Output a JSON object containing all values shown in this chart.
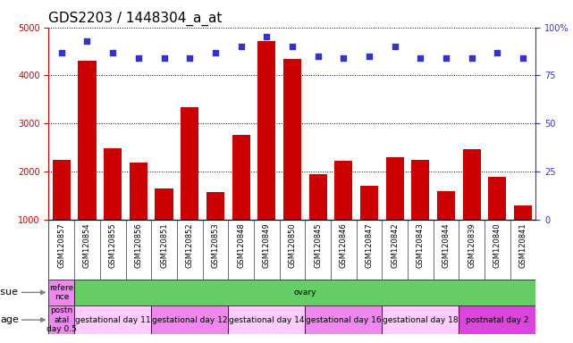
{
  "title": "GDS2203 / 1448304_a_at",
  "samples": [
    "GSM120857",
    "GSM120854",
    "GSM120855",
    "GSM120856",
    "GSM120851",
    "GSM120852",
    "GSM120853",
    "GSM120848",
    "GSM120849",
    "GSM120850",
    "GSM120845",
    "GSM120846",
    "GSM120847",
    "GSM120842",
    "GSM120843",
    "GSM120844",
    "GSM120839",
    "GSM120840",
    "GSM120841"
  ],
  "counts": [
    2250,
    4300,
    2480,
    2190,
    1640,
    3330,
    1580,
    2760,
    4720,
    4340,
    1940,
    2230,
    1710,
    2300,
    2240,
    1590,
    2460,
    1880,
    1300
  ],
  "percentiles": [
    87,
    93,
    87,
    84,
    84,
    84,
    87,
    90,
    95,
    90,
    85,
    84,
    85,
    90,
    84,
    84,
    84,
    87,
    84
  ],
  "ylim_left": [
    1000,
    5000
  ],
  "ylim_right": [
    0,
    100
  ],
  "yticks_left": [
    1000,
    2000,
    3000,
    4000,
    5000
  ],
  "yticks_right": [
    0,
    25,
    50,
    75,
    100
  ],
  "bar_color": "#cc0000",
  "dot_color": "#3333cc",
  "background_color": "#ffffff",
  "tissue_seg_reference_color": "#ee88ee",
  "tissue_seg_ovary_color": "#66cc66",
  "age_light_color": "#ffccff",
  "age_dark_color": "#dd44dd",
  "age_ref_color": "#ee88ee",
  "title_fontsize": 11,
  "tick_fontsize": 7,
  "sample_fontsize": 6,
  "label_fontsize": 8,
  "annotation_fontsize": 6.5
}
